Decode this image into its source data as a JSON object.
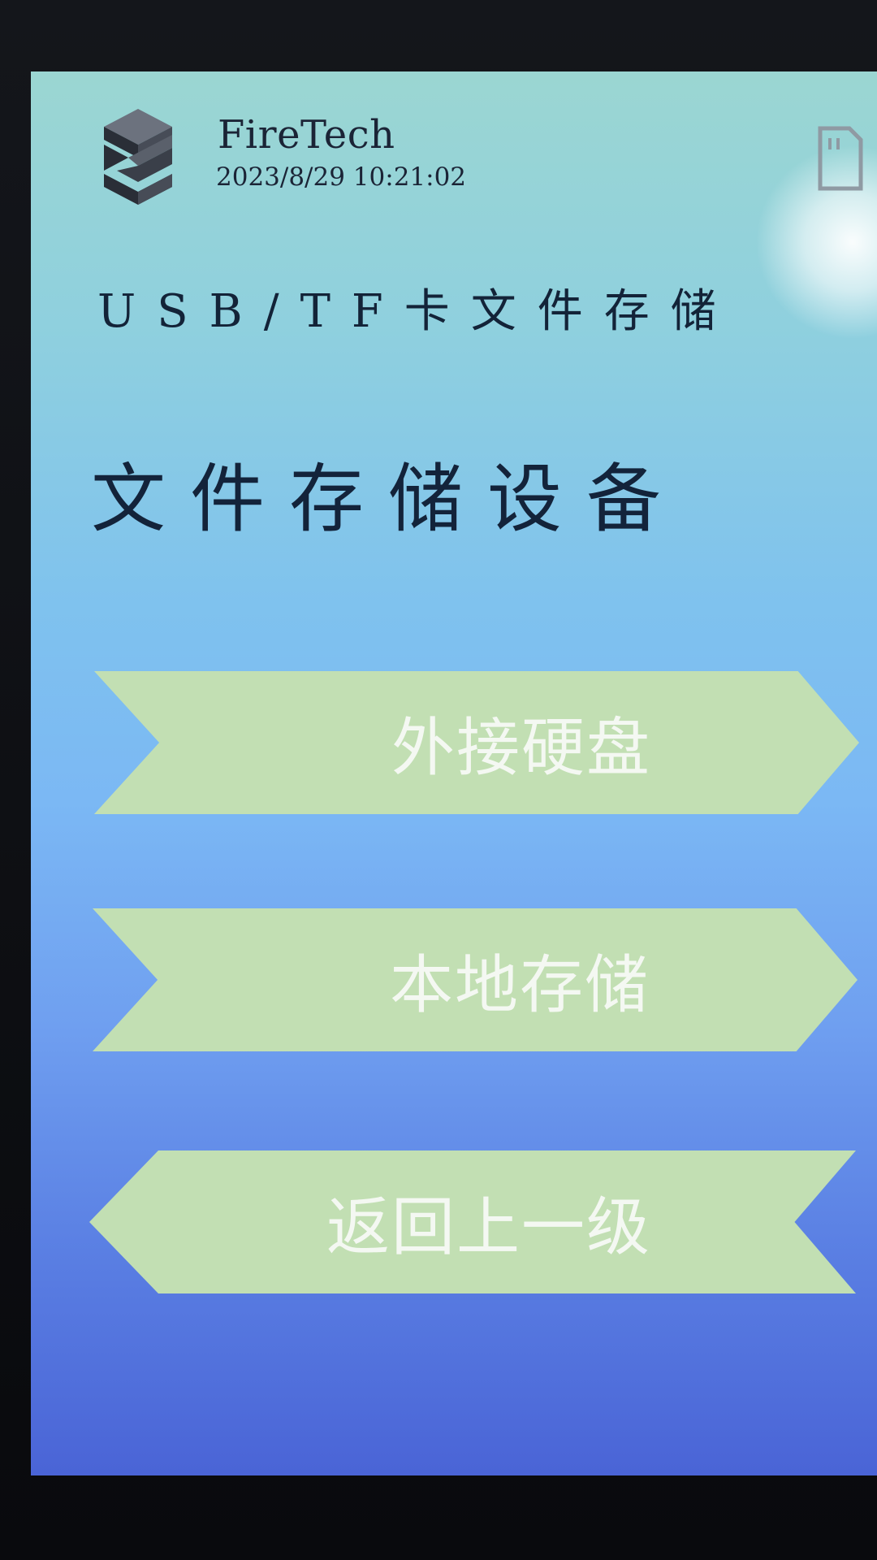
{
  "header": {
    "brand": "FireTech",
    "datetime": "2023/8/29 10:21:02",
    "logo_icon": "stacked-layers-logo-icon",
    "corner_icon": "sd-card-icon"
  },
  "page": {
    "subtitle": "USB/TF卡文件存储",
    "heading": "文件存储设备"
  },
  "menu": {
    "external_drive": "外接硬盘",
    "local_storage": "本地存储",
    "back": "返回上一级"
  },
  "colors": {
    "button_fill": "#c2dfb3",
    "button_text": "#f4f8f2",
    "text_dark": "#13233a",
    "background_top": "#9bd6d2",
    "background_bottom": "#4a64d6"
  }
}
